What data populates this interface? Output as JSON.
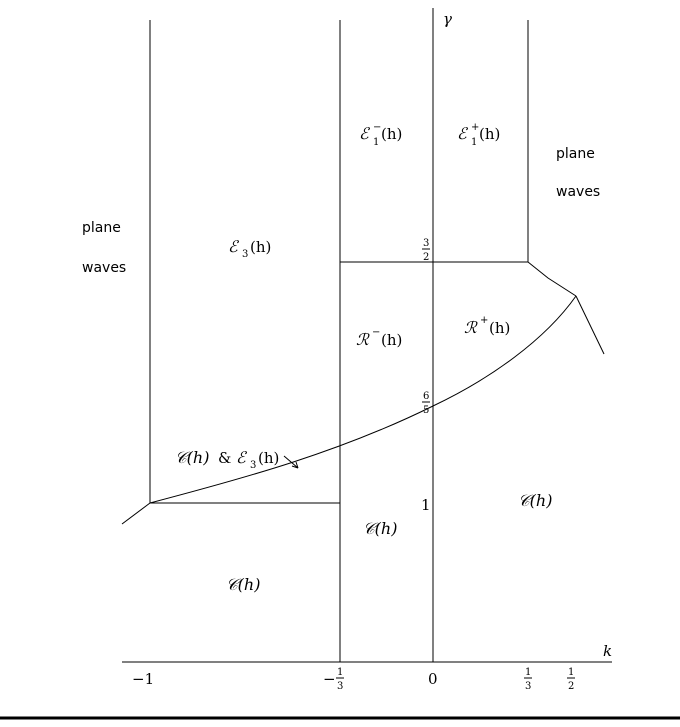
{
  "axes": {
    "x_label": "k",
    "y_label": "γ",
    "x_ticks": {
      "minus_one": "−1",
      "minus_third": {
        "sign": "−",
        "num": "1",
        "den": "3"
      },
      "zero": "0",
      "third": {
        "num": "1",
        "den": "3"
      },
      "half": {
        "num": "1",
        "den": "2"
      }
    },
    "y_ticks": {
      "three_halves": {
        "num": "3",
        "den": "2"
      },
      "six_fifths": {
        "num": "6",
        "den": "5"
      },
      "one": "1"
    }
  },
  "regions": {
    "plane_waves_left": [
      "plane",
      "waves"
    ],
    "plane_waves_right": [
      "plane",
      "waves"
    ],
    "e1_minus": {
      "letter": "ℰ",
      "sub": "1",
      "sup": "−",
      "arg": "(h)"
    },
    "e1_plus": {
      "letter": "ℰ",
      "sub": "1",
      "sup": "+",
      "arg": "(h)"
    },
    "e3": {
      "letter": "ℰ",
      "sub": "3",
      "arg": "(h)"
    },
    "r_minus": {
      "letter": "ℛ",
      "sup": "−",
      "arg": "(h)"
    },
    "r_plus": {
      "letter": "ℛ",
      "sup": "+",
      "arg": "(h)"
    },
    "c_and_e3": {
      "c": "𝒞(h)",
      "amp": "&",
      "e": "ℰ",
      "sub": "3",
      "arg": "(h)"
    },
    "c_mid": "𝒞(h)",
    "c_right": "𝒞(h)",
    "c_left": "𝒞(h)"
  },
  "colors": {
    "ink": "#000000",
    "background": "#ffffff"
  }
}
